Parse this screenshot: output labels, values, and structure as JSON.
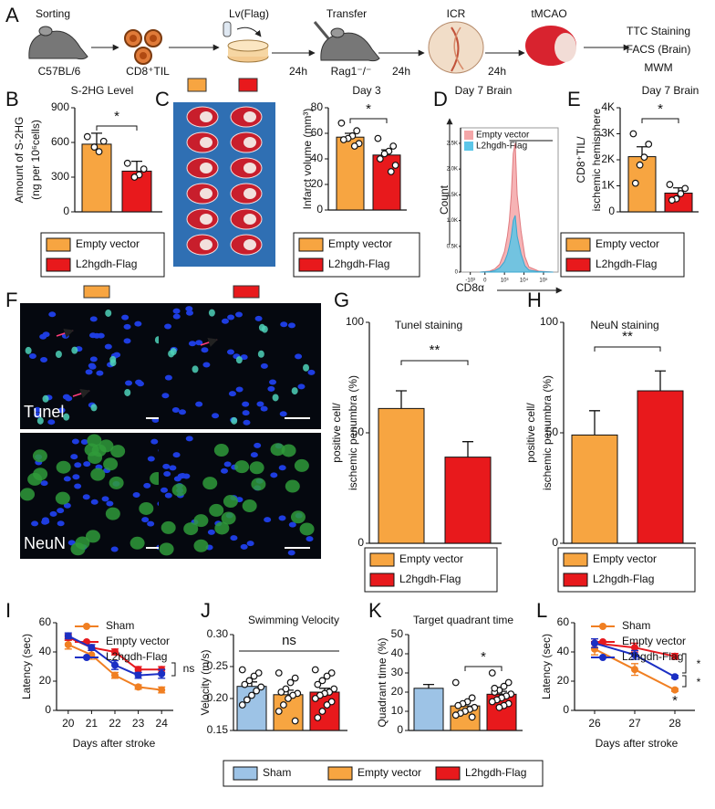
{
  "workflow": {
    "panel": "A",
    "steps": [
      "Sorting",
      "Lv(Flag)",
      "Transfer",
      "ICR",
      "tMCAO"
    ],
    "subjects": [
      "C57BL/6",
      "CD8⁺TIL",
      "Rag1⁻/⁻"
    ],
    "intervals": [
      "24h",
      "24h",
      "24h"
    ],
    "readouts": [
      "TTC  Staining",
      "FACS (Brain)",
      "MWM"
    ]
  },
  "micrographs": {
    "panel": "F",
    "stains": [
      "Tunel",
      "NeuN"
    ]
  },
  "chart_data": [
    {
      "panel": "B",
      "type": "bar",
      "title": "S-2HG Level",
      "ylabel": [
        "Amount of S-2HG",
        "(ng per 10⁶cells)"
      ],
      "ylim": [
        0,
        900
      ],
      "yticks": [
        0,
        300,
        600,
        900
      ],
      "annotations": [
        "*"
      ],
      "series": [
        {
          "name": "Empty vector",
          "color": "#f7a541",
          "values": [
            585
          ],
          "errors": [
            95
          ],
          "points": [
            [
              650,
              610,
              520,
              560
            ]
          ]
        },
        {
          "name": "L2hgdh-Flag",
          "color": "#e8191c",
          "values": [
            352
          ],
          "errors": [
            85
          ],
          "points": [
            [
              420,
              370,
              320,
              300
            ]
          ]
        }
      ]
    },
    {
      "panel": "C",
      "type": "bar",
      "title": "Day 3",
      "ylabel": [
        "Infarct volume (mm³)"
      ],
      "ylim": [
        0,
        80
      ],
      "yticks": [
        0,
        20,
        40,
        60,
        80
      ],
      "annotations": [
        "*"
      ],
      "series": [
        {
          "name": "Empty vector",
          "color": "#f7a541",
          "values": [
            57
          ],
          "errors": [
            3
          ],
          "points": [
            [
              68,
              62,
              58,
              56,
              55,
              52,
              50
            ]
          ]
        },
        {
          "name": "L2hgdh-Flag",
          "color": "#e8191c",
          "values": [
            43
          ],
          "errors": [
            4
          ],
          "points": [
            [
              56,
              50,
              46,
              44,
              40,
              35,
              30
            ]
          ]
        }
      ]
    },
    {
      "panel": "D",
      "type": "area",
      "title": "Day 7 Brain",
      "ylabel": [
        "Count"
      ],
      "xlabel": "CD8α",
      "xlim": [
        0,
        100
      ],
      "xticks": [
        {
          "value": 10,
          "label": "-10³"
        },
        {
          "value": 25,
          "label": "0"
        },
        {
          "value": 45,
          "label": "10³"
        },
        {
          "value": 65,
          "label": "10⁴"
        },
        {
          "value": 85,
          "label": "10⁵"
        }
      ],
      "ylim": [
        0,
        2800
      ],
      "yticks": [
        0,
        {
          "value": 500,
          "label": "0.5K"
        },
        {
          "value": 1000,
          "label": "1.0K"
        },
        {
          "value": 1500,
          "label": "1.5K"
        },
        {
          "value": 2000,
          "label": "2.0K"
        },
        {
          "value": 2500,
          "label": "2.5K"
        }
      ],
      "x": [
        20,
        30,
        35,
        40,
        45,
        48,
        50,
        52,
        54,
        56,
        58,
        62,
        66,
        70,
        80,
        95
      ],
      "series": [
        {
          "name": "Empty vector",
          "color": "#f4a6a8",
          "values": [
            0,
            20,
            60,
            150,
            400,
            700,
            1000,
            1500,
            2300,
            2500,
            1500,
            800,
            300,
            100,
            20,
            0
          ]
        },
        {
          "name": "L2hgdh-Flag",
          "color": "#5bc6e8",
          "values": [
            0,
            10,
            30,
            80,
            200,
            350,
            500,
            700,
            1000,
            1100,
            700,
            350,
            120,
            40,
            10,
            0
          ]
        }
      ]
    },
    {
      "panel": "E",
      "type": "bar",
      "title": "Day 7 Brain",
      "ylabel": [
        "CD8⁺TIL/",
        "ischemic hemisphere"
      ],
      "ylim": [
        0,
        4000
      ],
      "yticks": [
        0,
        {
          "value": 1000,
          "label": "1K"
        },
        {
          "value": 2000,
          "label": "2K"
        },
        {
          "value": 3000,
          "label": "3K"
        },
        {
          "value": 4000,
          "label": "4K"
        }
      ],
      "annotations": [
        "*"
      ],
      "series": [
        {
          "name": "Empty vector",
          "color": "#f7a541",
          "values": [
            2120
          ],
          "errors": [
            380
          ],
          "points": [
            [
              3000,
              2600,
              2100,
              1800,
              1100
            ]
          ]
        },
        {
          "name": "L2hgdh-Flag",
          "color": "#e8191c",
          "values": [
            720
          ],
          "errors": [
            200
          ],
          "points": [
            [
              1050,
              900,
              700,
              500,
              450
            ]
          ]
        }
      ]
    },
    {
      "panel": "G",
      "type": "bar",
      "title": "Tunel staining",
      "ylabel": [
        "positive cell/",
        "ischemic penumbra (%)"
      ],
      "ylim": [
        0,
        100
      ],
      "yticks": [
        0,
        50,
        100
      ],
      "annotations": [
        "**"
      ],
      "series": [
        {
          "name": "Empty vector",
          "color": "#f7a541",
          "values": [
            61
          ],
          "errors": [
            8
          ]
        },
        {
          "name": "L2hgdh-Flag",
          "color": "#e8191c",
          "values": [
            39
          ],
          "errors": [
            7
          ]
        }
      ]
    },
    {
      "panel": "H",
      "type": "bar",
      "title": "NeuN staining",
      "ylabel": [
        "positive cell/",
        "ischemic penumbra (%)"
      ],
      "ylim": [
        0,
        100
      ],
      "yticks": [
        0,
        50,
        100
      ],
      "annotations": [
        "**"
      ],
      "series": [
        {
          "name": "Empty vector",
          "color": "#f7a541",
          "values": [
            49
          ],
          "errors": [
            11
          ]
        },
        {
          "name": "L2hgdh-Flag",
          "color": "#e8191c",
          "values": [
            69
          ],
          "errors": [
            9
          ]
        }
      ]
    },
    {
      "panel": "I",
      "type": "line",
      "ylabel": [
        "Latency (sec)"
      ],
      "xlabel": "Days after stroke",
      "x": [
        20,
        21,
        22,
        23,
        24
      ],
      "xlim": [
        19.5,
        24.5
      ],
      "xticks": [
        20,
        21,
        22,
        23,
        24
      ],
      "ylim": [
        0,
        60
      ],
      "yticks": [
        0,
        20,
        40,
        60
      ],
      "annotations": [
        "ns"
      ],
      "series": [
        {
          "name": "Sham",
          "color": "#f07f22",
          "values": [
            45,
            38,
            24,
            16,
            14
          ],
          "errors": [
            3,
            3,
            2,
            1.5,
            2
          ]
        },
        {
          "name": "Empty vector",
          "color": "#e6191e",
          "values": [
            50,
            43,
            40,
            28,
            28
          ],
          "errors": [
            2,
            2,
            2,
            2,
            2
          ]
        },
        {
          "name": "L2hgdh-Flag",
          "color": "#1b2fc4",
          "values": [
            51,
            43,
            31,
            24,
            25
          ],
          "errors": [
            2,
            2,
            3,
            2,
            3
          ]
        }
      ]
    },
    {
      "panel": "J",
      "type": "bar",
      "title": "Swimming Velocity",
      "ylabel": [
        "Velocity (m/s)"
      ],
      "ylim": [
        0.15,
        0.3
      ],
      "yticks": [
        0.15,
        {
          "value": 0.2,
          "label": "0.20"
        },
        0.25,
        {
          "value": 0.3,
          "label": "0.30"
        }
      ],
      "annotations": [
        "ns"
      ],
      "series": [
        {
          "name": "Sham",
          "color": "#9dc3e6",
          "values": [
            0.219
          ],
          "errors": [
            0.007
          ],
          "points": [
            [
              0.245,
              0.24,
              0.235,
              0.228,
              0.222,
              0.218,
              0.212,
              0.205,
              0.198,
              0.19
            ]
          ]
        },
        {
          "name": "Empty vector",
          "color": "#f7a541",
          "values": [
            0.206
          ],
          "errors": [
            0.007
          ],
          "points": [
            [
              0.24,
              0.232,
              0.225,
              0.215,
              0.21,
              0.208,
              0.205,
              0.2,
              0.19,
              0.18,
              0.165
            ]
          ]
        },
        {
          "name": "L2hgdh-Flag",
          "color": "#e8191c",
          "values": [
            0.21
          ],
          "errors": [
            0.006
          ],
          "points": [
            [
              0.245,
              0.24,
              0.235,
              0.228,
              0.222,
              0.215,
              0.21,
              0.208,
              0.205,
              0.2,
              0.195,
              0.19,
              0.18,
              0.17
            ]
          ]
        }
      ]
    },
    {
      "panel": "K",
      "type": "bar",
      "title": "Target quadrant time",
      "ylabel": [
        "Quadrant time (%)"
      ],
      "ylim": [
        0,
        50
      ],
      "yticks": [
        0,
        10,
        20,
        30,
        40,
        50
      ],
      "annotations": [
        "*"
      ],
      "series": [
        {
          "name": "Sham",
          "color": "#9dc3e6",
          "values": [
            22
          ],
          "errors": [
            2
          ]
        },
        {
          "name": "Empty vector",
          "color": "#f7a541",
          "values": [
            12.8
          ],
          "errors": [
            1.5
          ],
          "points": [
            [
              25,
              17,
              15,
              14,
              13,
              12,
              11,
              10,
              9,
              8,
              7
            ]
          ]
        },
        {
          "name": "L2hgdh-Flag",
          "color": "#e8191c",
          "values": [
            18.9
          ],
          "errors": [
            1.5
          ],
          "points": [
            [
              30,
              25,
              23,
              21,
              20,
              19,
              18,
              17,
              16,
              15,
              14,
              13,
              12,
              22
            ]
          ]
        }
      ]
    },
    {
      "panel": "L",
      "type": "line",
      "ylabel": [
        "Latency (sec)"
      ],
      "xlabel": "Days after stroke",
      "x": [
        26,
        27,
        28
      ],
      "xlim": [
        25.5,
        28.5
      ],
      "xticks": [
        26,
        27,
        28
      ],
      "ylim": [
        0,
        60
      ],
      "yticks": [
        0,
        20,
        40,
        60
      ],
      "annotations": [
        "*",
        "*",
        "*"
      ],
      "series": [
        {
          "name": "Sham",
          "color": "#f07f22",
          "values": [
            42,
            28,
            14
          ],
          "errors": [
            4,
            4,
            1
          ]
        },
        {
          "name": "Empty vector",
          "color": "#e6191e",
          "values": [
            46,
            43,
            37
          ],
          "errors": [
            3,
            3,
            2
          ]
        },
        {
          "name": "L2hgdh-Flag",
          "color": "#1b2fc4",
          "values": [
            46,
            38,
            23
          ],
          "errors": [
            3,
            3,
            1
          ]
        }
      ]
    }
  ]
}
